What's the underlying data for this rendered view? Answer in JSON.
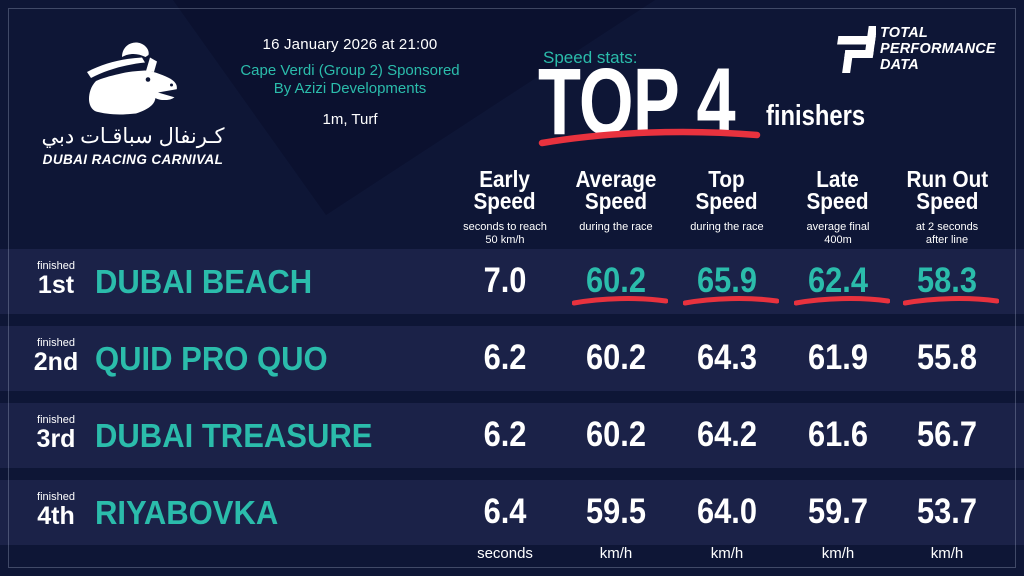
{
  "brand": {
    "arabic_name": "كـرنفال سباقـات دبي",
    "name": "DUBAI RACING CARNIVAL"
  },
  "provider": {
    "line1": "TOTAL",
    "line2": "PERFORMANCE",
    "line3": "DATA"
  },
  "event": {
    "datetime": "16 January 2026 at 21:00",
    "race_line1": "Cape Verdi (Group 2) Sponsored",
    "race_line2": "By Azizi Developments",
    "distance_surface": "1m, Turf"
  },
  "headline": {
    "kicker": "Speed stats:",
    "big": "TOP 4",
    "suffix": "finishers"
  },
  "colors": {
    "accent_teal": "#2bbcab",
    "accent_red": "#e8323e",
    "row_bg": "#1b2248",
    "page_bg": "#0e1636"
  },
  "chart_data": {
    "type": "table",
    "title": "Speed stats: TOP 4 finishers",
    "columns": [
      {
        "label": "Early Speed",
        "sub": "seconds to reach 50 km/h",
        "unit": "seconds"
      },
      {
        "label": "Average Speed",
        "sub": "during the race",
        "unit": "km/h"
      },
      {
        "label": "Top Speed",
        "sub": "during the race",
        "unit": "km/h"
      },
      {
        "label": "Late Speed",
        "sub": "average final 400m",
        "unit": "km/h"
      },
      {
        "label": "Run Out Speed",
        "sub": "at 2 seconds after line",
        "unit": "km/h"
      }
    ],
    "rows": [
      {
        "finished_label": "finished",
        "position": "1st",
        "horse": "DUBAI BEACH",
        "values": [
          "7.0",
          "60.2",
          "65.9",
          "62.4",
          "58.3"
        ],
        "highlighted": [
          false,
          true,
          true,
          true,
          true
        ]
      },
      {
        "finished_label": "finished",
        "position": "2nd",
        "horse": "QUID PRO QUO",
        "values": [
          "6.2",
          "60.2",
          "64.3",
          "61.9",
          "55.8"
        ],
        "highlighted": [
          false,
          false,
          false,
          false,
          false
        ]
      },
      {
        "finished_label": "finished",
        "position": "3rd",
        "horse": "DUBAI TREASURE",
        "values": [
          "6.2",
          "60.2",
          "64.2",
          "61.6",
          "56.7"
        ],
        "highlighted": [
          false,
          false,
          false,
          false,
          false
        ]
      },
      {
        "finished_label": "finished",
        "position": "4th",
        "horse": "RIYABOVKA",
        "values": [
          "6.4",
          "59.5",
          "64.0",
          "59.7",
          "53.7"
        ],
        "highlighted": [
          false,
          false,
          false,
          false,
          false
        ]
      }
    ]
  }
}
